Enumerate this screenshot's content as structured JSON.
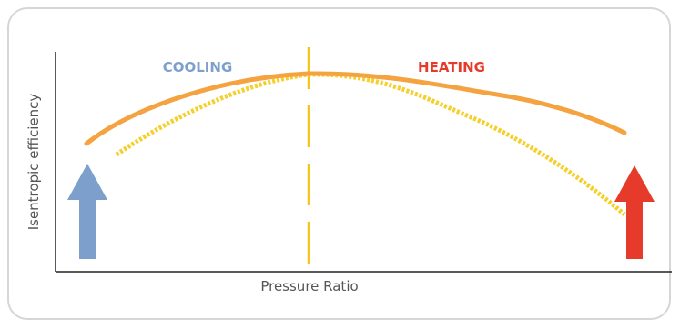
{
  "diagram": {
    "y_axis_label": "Isentropic efficiency",
    "x_axis_label": "Pressure Ratio",
    "regions": {
      "left_label": "COOLING",
      "right_label": "HEATING"
    },
    "colors": {
      "solid_curve": "#f4a340",
      "dotted_curve": "#f5cf2a",
      "divider": "#f4c51a",
      "cooling": "#7d9fcb",
      "heating": "#e63b2a",
      "axis": "#222222"
    },
    "icons": {
      "left_arrow": "arrow-up-icon",
      "right_arrow": "arrow-up-icon"
    }
  }
}
